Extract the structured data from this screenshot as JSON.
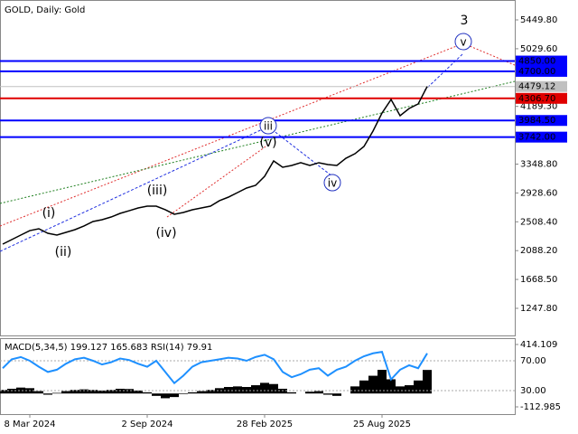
{
  "chart_data": {
    "type": "line",
    "title": "GOLD, Daily: Gold",
    "categories": [
      null,
      null,
      null,
      "8 Mar 2024",
      null,
      null,
      null,
      null,
      null,
      null,
      null,
      null,
      null,
      null,
      null,
      null,
      "2 Sep 2024",
      null,
      null,
      null,
      null,
      null,
      null,
      null,
      null,
      null,
      null,
      null,
      null,
      "28 Feb 2025",
      null,
      null,
      null,
      null,
      null,
      null,
      null,
      null,
      null,
      null,
      null,
      null,
      "25 Aug 2025",
      null,
      null,
      null,
      null,
      null
    ],
    "series": [
      {
        "color": "#000000",
        "values": [
          2183,
          2249,
          2315,
          2380,
          2407,
          2341,
          2315,
          2354,
          2394,
          2447,
          2513,
          2539,
          2578,
          2631,
          2670,
          2710,
          2736,
          2736,
          2684,
          2618,
          2644,
          2684,
          2710,
          2736,
          2816,
          2868,
          2934,
          3000,
          3039,
          3171,
          3395,
          3303,
          3329,
          3369,
          3329,
          3369,
          3342,
          3329,
          3434,
          3500,
          3606,
          3830,
          4093,
          4290,
          4054,
          4159,
          4225,
          4479.12
        ]
      }
    ],
    "current_price_color": "#c0c0c0",
    "ylim": [
      839.5,
      5739.6
    ],
    "yticks": [
      {
        "value": 5449.8,
        "label": "5449.80"
      },
      {
        "value": 5029.6,
        "label": "5029.60"
      },
      {
        "value": 4189.3,
        "label": "4189.30"
      },
      {
        "value": 3348.8,
        "label": "3348.80"
      },
      {
        "value": 2928.6,
        "label": "2928.60"
      },
      {
        "value": 2508.4,
        "label": "2508.40"
      },
      {
        "value": 2088.2,
        "label": "2088.20"
      },
      {
        "value": 1668.5,
        "label": "1668.50"
      },
      {
        "value": 1247.8,
        "label": "1247.80"
      }
    ],
    "levels": [
      {
        "value": 4850,
        "label": "4850.00",
        "color": "#0000ff"
      },
      {
        "value": 4700,
        "label": "4700.00",
        "color": "#0000ff"
      },
      {
        "value": 4306.7,
        "label": "4306.70",
        "color": "#e00000"
      },
      {
        "value": 3984.5,
        "label": "3984.50",
        "color": "#0000ff"
      },
      {
        "value": 3742,
        "label": "3742.00",
        "color": "#0000ff"
      }
    ],
    "annotations": [
      {
        "text": "3",
        "color": "#d04030",
        "circled": false
      },
      {
        "text": "v",
        "color": "#2030c0",
        "circled": true
      },
      {
        "text": "iii",
        "color": "#2030c0",
        "circled": true
      },
      {
        "text": "iv",
        "color": "#2030c0",
        "circled": true
      },
      {
        "text": "(v)",
        "color": "#e02020",
        "circled": false
      },
      {
        "text": "(iii)",
        "color": "#e02020",
        "circled": false
      },
      {
        "text": "(iv)",
        "color": "#e02020",
        "circled": false
      },
      {
        "text": "(i)",
        "color": "#e02020",
        "circled": false
      },
      {
        "text": "(ii)",
        "color": "#e02020",
        "circled": false
      }
    ],
    "indicator": {
      "title": "MACD(5,34,5) 199.127 165.683 RSI(14) 79.91",
      "macd": {
        "color": "#000000",
        "ylim": [
          -112.985,
          414.109
        ],
        "yticks": [
          414.109,
          -112.985
        ],
        "values": [
          30,
          40,
          50,
          45,
          20,
          -10,
          5,
          20,
          30,
          35,
          30,
          25,
          30,
          40,
          38,
          25,
          10,
          -20,
          -40,
          -30,
          -5,
          10,
          20,
          30,
          45,
          55,
          60,
          55,
          70,
          90,
          80,
          40,
          10,
          0,
          15,
          20,
          -10,
          -20,
          0,
          60,
          110,
          150,
          200,
          120,
          60,
          70,
          110,
          199
        ]
      },
      "rsi": {
        "color": "#1e90ff",
        "ylim": [
          8.2,
          91.8
        ],
        "yticks": [
          {
            "value": 70,
            "label": "70.00"
          },
          {
            "value": 30,
            "label": "30.00"
          }
        ],
        "values": [
          60,
          72,
          75,
          70,
          62,
          55,
          58,
          66,
          72,
          74,
          70,
          65,
          68,
          73,
          71,
          66,
          62,
          70,
          55,
          40,
          50,
          62,
          68,
          70,
          72,
          74,
          73,
          70,
          75,
          78,
          72,
          55,
          48,
          52,
          58,
          60,
          50,
          58,
          62,
          70,
          76,
          80,
          82,
          45,
          58,
          64,
          60,
          79.91
        ]
      }
    }
  }
}
